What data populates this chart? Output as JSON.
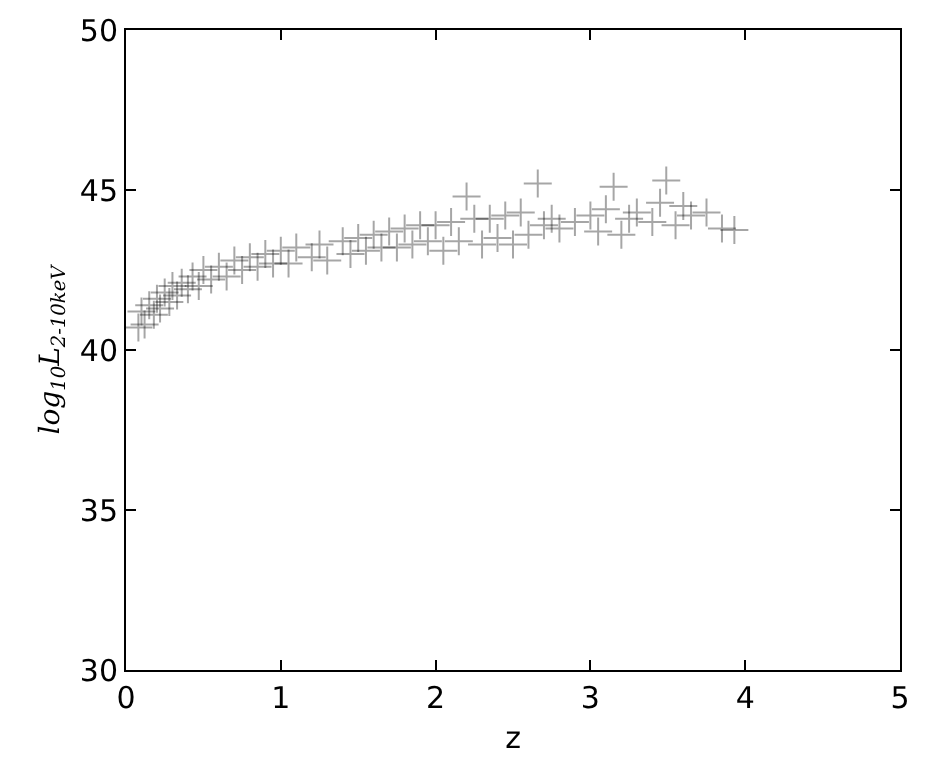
{
  "chart_data": {
    "type": "scatter",
    "xlabel": "z",
    "ylabel": "log$_{10}$L$_{2-10keV}$",
    "xlim": [
      0,
      5
    ],
    "xticks": [
      0,
      1,
      2,
      3,
      4,
      5
    ],
    "ylim": [
      30,
      50
    ],
    "yticks": [
      30,
      35,
      40,
      45,
      50
    ],
    "grid": false,
    "marker": "cross",
    "series": [
      {
        "color": "#000000",
        "x": [
          0.08,
          0.1,
          0.12,
          0.15,
          0.18,
          0.2,
          0.22,
          0.25,
          0.28,
          0.3,
          0.33,
          0.36,
          0.4,
          0.43,
          0.47,
          0.5,
          0.55,
          0.6,
          0.65,
          0.7,
          0.75,
          0.8,
          0.85,
          0.9,
          0.95,
          1.0,
          1.05,
          1.1,
          1.2,
          1.25,
          1.3,
          1.4,
          1.45,
          1.5,
          1.55,
          1.6,
          1.65,
          1.7,
          1.75,
          1.8,
          1.85,
          1.9,
          1.95,
          2.0,
          2.05,
          2.1,
          2.15,
          2.2,
          2.25,
          2.3,
          2.35,
          2.4,
          2.45,
          2.5,
          2.55,
          2.6,
          2.66,
          2.7,
          2.75,
          2.8,
          2.9,
          3.0,
          3.05,
          3.1,
          3.15,
          3.2,
          3.25,
          3.3,
          3.4,
          3.45,
          3.49,
          3.55,
          3.6,
          3.65,
          3.75,
          3.85,
          3.93
        ],
        "values": [
          40.7,
          41.2,
          40.8,
          41.4,
          41.1,
          41.6,
          41.3,
          41.8,
          41.5,
          42.0,
          41.7,
          42.1,
          41.9,
          42.3,
          42.0,
          42.5,
          42.2,
          42.6,
          42.3,
          42.8,
          42.5,
          42.9,
          42.6,
          43.0,
          42.7,
          43.1,
          42.7,
          43.2,
          42.9,
          43.3,
          42.8,
          43.4,
          43.0,
          43.5,
          43.1,
          43.6,
          43.2,
          43.7,
          43.2,
          43.8,
          43.3,
          43.9,
          43.4,
          43.9,
          43.1,
          44.0,
          43.4,
          44.8,
          44.1,
          43.3,
          44.1,
          43.5,
          44.2,
          43.3,
          44.3,
          43.6,
          45.2,
          43.9,
          44.1,
          43.8,
          44.0,
          44.2,
          43.7,
          44.4,
          45.1,
          43.6,
          44.1,
          44.3,
          44.0,
          44.6,
          45.3,
          43.9,
          44.5,
          44.2,
          44.3,
          43.8,
          43.75
        ]
      }
    ]
  }
}
